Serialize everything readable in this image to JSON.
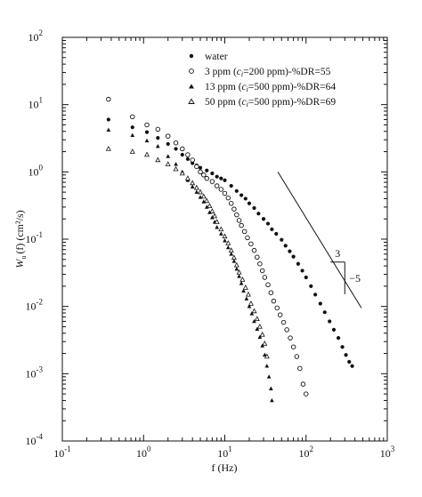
{
  "chart_data": {
    "type": "scatter",
    "title": "",
    "xlabel": "f (Hz)",
    "ylabel_main": "W",
    "ylabel_sub": "u",
    "ylabel_rest": "(f) (cm²/s)",
    "xscale": "log",
    "yscale": "log",
    "xlim": [
      0.1,
      1000
    ],
    "ylim": [
      0.0001,
      100
    ],
    "grid": false,
    "legend_position": "top-right",
    "x_ticks": [
      {
        "value": 0.1,
        "base": "10",
        "exp": "-1"
      },
      {
        "value": 1,
        "base": "10",
        "exp": "0"
      },
      {
        "value": 10,
        "base": "10",
        "exp": "1"
      },
      {
        "value": 100,
        "base": "10",
        "exp": "2"
      },
      {
        "value": 1000,
        "base": "10",
        "exp": "3"
      }
    ],
    "y_ticks": [
      {
        "value": 0.0001,
        "base": "10",
        "exp": "-4"
      },
      {
        "value": 0.001,
        "base": "10",
        "exp": "-3"
      },
      {
        "value": 0.01,
        "base": "10",
        "exp": "-2"
      },
      {
        "value": 0.1,
        "base": "10",
        "exp": "-1"
      },
      {
        "value": 1,
        "base": "10",
        "exp": "0"
      },
      {
        "value": 10,
        "base": "10",
        "exp": "1"
      },
      {
        "value": 100,
        "base": "10",
        "exp": "2"
      }
    ],
    "series": [
      {
        "name": "water",
        "marker": "filled-circle",
        "points": [
          [
            0.37,
            6.0
          ],
          [
            0.73,
            4.6
          ],
          [
            1.1,
            3.9
          ],
          [
            1.5,
            3.2
          ],
          [
            2.0,
            2.6
          ],
          [
            2.5,
            2.2
          ],
          [
            3.0,
            1.8
          ],
          [
            3.5,
            1.55
          ],
          [
            4.0,
            1.35
          ],
          [
            4.5,
            1.25
          ],
          [
            5.0,
            1.15
          ],
          [
            6.0,
            1.05
          ],
          [
            7.0,
            0.95
          ],
          [
            8.0,
            0.85
          ],
          [
            9.0,
            0.8
          ],
          [
            10.0,
            0.75
          ],
          [
            12.0,
            0.62
          ],
          [
            14.0,
            0.52
          ],
          [
            16.0,
            0.45
          ],
          [
            18.0,
            0.4
          ],
          [
            20.0,
            0.34
          ],
          [
            23.0,
            0.29
          ],
          [
            26.0,
            0.24
          ],
          [
            30.0,
            0.2
          ],
          [
            34.0,
            0.17
          ],
          [
            38.0,
            0.14
          ],
          [
            43.0,
            0.12
          ],
          [
            50.0,
            0.098
          ],
          [
            56.0,
            0.08
          ],
          [
            63.0,
            0.066
          ],
          [
            70.0,
            0.055
          ],
          [
            80.0,
            0.043
          ],
          [
            90.0,
            0.034
          ],
          [
            100.0,
            0.027
          ],
          [
            115.0,
            0.02
          ],
          [
            130.0,
            0.015
          ],
          [
            150.0,
            0.011
          ],
          [
            170.0,
            0.0082
          ],
          [
            195.0,
            0.006
          ],
          [
            220.0,
            0.0045
          ],
          [
            250.0,
            0.0034
          ],
          [
            280.0,
            0.0025
          ],
          [
            310.0,
            0.0019
          ],
          [
            340.0,
            0.0015
          ],
          [
            370.0,
            0.0013
          ]
        ]
      },
      {
        "name": "3 ppm (c_i=200 ppm)-%DR=55",
        "marker": "open-circle",
        "points": [
          [
            0.37,
            12.0
          ],
          [
            0.73,
            6.6
          ],
          [
            1.1,
            5.0
          ],
          [
            1.5,
            4.3
          ],
          [
            2.0,
            3.4
          ],
          [
            2.5,
            2.7
          ],
          [
            3.0,
            2.2
          ],
          [
            3.5,
            1.8
          ],
          [
            4.0,
            1.5
          ],
          [
            4.5,
            1.2
          ],
          [
            5.0,
            1.0
          ],
          [
            5.5,
            0.9
          ],
          [
            6.0,
            0.8
          ],
          [
            7.0,
            0.72
          ],
          [
            8.0,
            0.62
          ],
          [
            9.0,
            0.55
          ],
          [
            10.0,
            0.48
          ],
          [
            11.0,
            0.41
          ],
          [
            12.0,
            0.34
          ],
          [
            13.0,
            0.28
          ],
          [
            14.0,
            0.23
          ],
          [
            15.0,
            0.19
          ],
          [
            16.0,
            0.16
          ],
          [
            17.5,
            0.13
          ],
          [
            19.0,
            0.105
          ],
          [
            21.0,
            0.085
          ],
          [
            23.0,
            0.068
          ],
          [
            25.0,
            0.054
          ],
          [
            27.0,
            0.043
          ],
          [
            29.0,
            0.034
          ],
          [
            31.0,
            0.027
          ],
          [
            34.0,
            0.021
          ],
          [
            37.0,
            0.016
          ],
          [
            40.0,
            0.012
          ],
          [
            44.0,
            0.0095
          ],
          [
            48.0,
            0.0075
          ],
          [
            53.0,
            0.0058
          ],
          [
            58.0,
            0.0045
          ],
          [
            64.0,
            0.0034
          ],
          [
            70.0,
            0.0025
          ],
          [
            77.0,
            0.0018
          ],
          [
            84.0,
            0.0012
          ],
          [
            92.0,
            0.0007
          ],
          [
            100.0,
            0.0005
          ]
        ]
      },
      {
        "name": "13 ppm (c_i=500 ppm)-%DR=64",
        "marker": "filled-triangle",
        "points": [
          [
            0.37,
            4.2
          ],
          [
            0.73,
            3.5
          ],
          [
            1.1,
            2.9
          ],
          [
            1.5,
            2.4
          ],
          [
            2.0,
            1.7
          ],
          [
            2.5,
            1.3
          ],
          [
            3.0,
            1.0
          ],
          [
            3.5,
            0.75
          ],
          [
            4.0,
            0.6
          ],
          [
            4.5,
            0.5
          ],
          [
            5.0,
            0.42
          ],
          [
            5.5,
            0.36
          ],
          [
            6.0,
            0.3
          ],
          [
            6.5,
            0.25
          ],
          [
            7.0,
            0.21
          ],
          [
            7.5,
            0.18
          ],
          [
            8.0,
            0.15
          ],
          [
            9.0,
            0.12
          ],
          [
            10.0,
            0.095
          ],
          [
            11.0,
            0.075
          ],
          [
            12.0,
            0.06
          ],
          [
            13.0,
            0.047
          ],
          [
            14.0,
            0.036
          ],
          [
            15.0,
            0.028
          ],
          [
            16.0,
            0.022
          ],
          [
            17.0,
            0.017
          ],
          [
            18.5,
            0.013
          ],
          [
            20.0,
            0.01
          ],
          [
            21.5,
            0.0078
          ],
          [
            23.0,
            0.006
          ],
          [
            25.0,
            0.0046
          ],
          [
            27.0,
            0.0035
          ],
          [
            29.0,
            0.0026
          ],
          [
            31.0,
            0.0019
          ],
          [
            33.0,
            0.0013
          ],
          [
            35.0,
            0.0009
          ],
          [
            37.0,
            0.0006
          ],
          [
            38.0,
            0.0004
          ]
        ]
      },
      {
        "name": "50 ppm (c_i=500 ppm)-%DR=69",
        "marker": "open-triangle",
        "points": [
          [
            0.37,
            2.2
          ],
          [
            0.73,
            2.0
          ],
          [
            1.1,
            1.8
          ],
          [
            1.5,
            1.5
          ],
          [
            2.0,
            1.3
          ],
          [
            2.5,
            1.1
          ],
          [
            3.0,
            0.95
          ],
          [
            3.5,
            0.8
          ],
          [
            4.0,
            0.68
          ],
          [
            4.5,
            0.58
          ],
          [
            5.0,
            0.5
          ],
          [
            5.5,
            0.43
          ],
          [
            6.0,
            0.37
          ],
          [
            6.5,
            0.31
          ],
          [
            7.0,
            0.26
          ],
          [
            7.5,
            0.22
          ],
          [
            8.0,
            0.18
          ],
          [
            9.0,
            0.14
          ],
          [
            10.0,
            0.11
          ],
          [
            11.0,
            0.087
          ],
          [
            12.0,
            0.068
          ],
          [
            13.0,
            0.053
          ],
          [
            14.0,
            0.041
          ],
          [
            15.0,
            0.032
          ],
          [
            16.5,
            0.025
          ],
          [
            18.0,
            0.019
          ],
          [
            19.5,
            0.015
          ],
          [
            21.0,
            0.011
          ],
          [
            23.0,
            0.0085
          ],
          [
            25.0,
            0.0065
          ],
          [
            27.0,
            0.005
          ],
          [
            29.0,
            0.0038
          ],
          [
            31.0,
            0.0028
          ],
          [
            33.0,
            0.0018
          ]
        ]
      }
    ],
    "legend": {
      "entries": [
        {
          "marker": "filled-circle",
          "text": "water"
        },
        {
          "marker": "open-circle",
          "pre": "3 ppm (",
          "ci": "c",
          "ci_sub": "i",
          "post": "=200 ppm)-%DR=55"
        },
        {
          "marker": "filled-triangle",
          "pre": "13 ppm (",
          "ci": "c",
          "ci_sub": "i",
          "post": "=500 ppm)-%DR=64"
        },
        {
          "marker": "open-triangle",
          "pre": "50 ppm (",
          "ci": "c",
          "ci_sub": "i",
          "post": "=500 ppm)-%DR=69"
        }
      ]
    },
    "slope_annotation": {
      "run_label": "3",
      "rise_label": "−5",
      "line_start": [
        45.0,
        1.0
      ],
      "line_end": [
        480.0,
        0.0095
      ],
      "triangle_corner": [
        200.0,
        0.0456
      ],
      "triangle_right": [
        300.0,
        0.0456
      ],
      "triangle_bottom": [
        300.0,
        0.0152
      ]
    }
  }
}
